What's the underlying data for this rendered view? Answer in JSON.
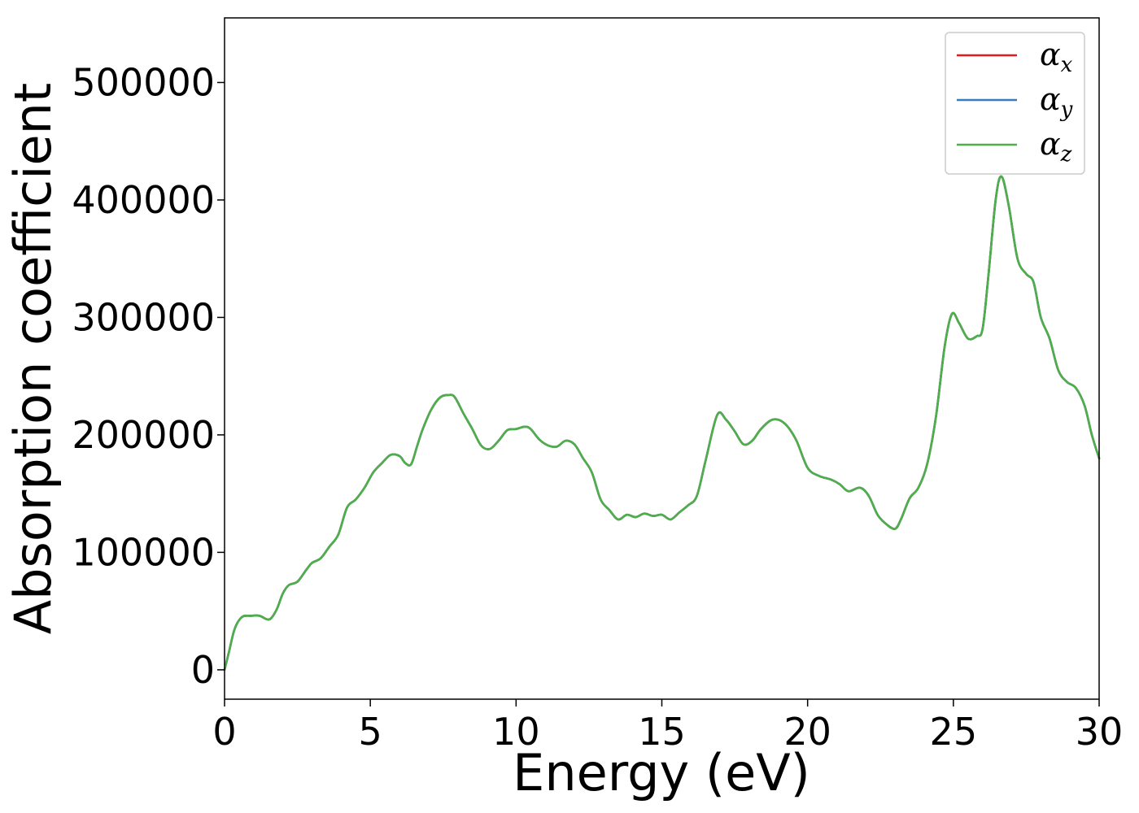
{
  "chart_data": {
    "type": "line",
    "title": "",
    "xlabel": "Energy (eV)",
    "ylabel": "Absorption coefficient",
    "xlim": [
      0,
      30
    ],
    "ylim": [
      -25000,
      555000
    ],
    "xticks": [
      0,
      5,
      10,
      15,
      20,
      25,
      30
    ],
    "yticks": [
      0,
      100000,
      200000,
      300000,
      400000,
      500000
    ],
    "grid": false,
    "legend_position": "top-right",
    "series": [
      {
        "name": "αx",
        "symbol": "α",
        "subscript": "x",
        "color": "#e41a1c",
        "x": [
          0,
          0.15,
          0.35,
          0.6,
          0.9,
          1.2,
          1.45,
          1.6,
          1.8,
          2.0,
          2.2,
          2.5,
          2.8,
          3.0,
          3.3,
          3.6,
          3.9,
          4.2,
          4.5,
          4.8,
          5.1,
          5.4,
          5.7,
          6.0,
          6.2,
          6.4,
          6.6,
          6.8,
          7.1,
          7.4,
          7.7,
          7.9,
          8.2,
          8.5,
          8.8,
          9.1,
          9.4,
          9.7,
          10.0,
          10.3,
          10.5,
          10.8,
          11.1,
          11.4,
          11.7,
          12.0,
          12.3,
          12.6,
          12.9,
          13.2,
          13.5,
          13.8,
          14.1,
          14.4,
          14.7,
          15.0,
          15.3,
          15.6,
          15.9,
          16.2,
          16.5,
          16.9,
          17.2,
          17.5,
          17.8,
          18.1,
          18.4,
          18.8,
          19.2,
          19.6,
          20.0,
          20.4,
          20.8,
          21.1,
          21.4,
          21.8,
          22.1,
          22.4,
          22.7,
          23.0,
          23.2,
          23.5,
          23.8,
          24.1,
          24.4,
          24.7,
          24.95,
          25.2,
          25.5,
          25.8,
          26.0,
          26.2,
          26.45,
          26.65,
          26.9,
          27.2,
          27.5,
          27.75,
          28.0,
          28.3,
          28.6,
          28.9,
          29.2,
          29.5,
          29.75,
          30.0
        ],
        "y": [
          0,
          15000,
          35000,
          45000,
          46000,
          46000,
          43000,
          44000,
          52000,
          65000,
          72000,
          75000,
          85000,
          91000,
          95000,
          105000,
          115000,
          138000,
          145000,
          155000,
          168000,
          176000,
          183000,
          182000,
          176000,
          175000,
          190000,
          205000,
          222000,
          232000,
          234000,
          232000,
          218000,
          205000,
          191000,
          188000,
          195000,
          204000,
          205000,
          207000,
          205000,
          196000,
          191000,
          190000,
          195000,
          192000,
          180000,
          168000,
          145000,
          136000,
          128000,
          132000,
          130000,
          133000,
          131000,
          132000,
          128000,
          134000,
          140000,
          148000,
          178000,
          217000,
          213000,
          203000,
          192000,
          195000,
          205000,
          213000,
          210000,
          196000,
          172000,
          165000,
          162000,
          158000,
          152000,
          155000,
          148000,
          132000,
          124000,
          120000,
          128000,
          146000,
          155000,
          175000,
          215000,
          275000,
          303000,
          295000,
          282000,
          284000,
          290000,
          335000,
          400000,
          420000,
          395000,
          350000,
          337000,
          330000,
          300000,
          282000,
          255000,
          245000,
          240000,
          225000,
          200000,
          180000
        ]
      },
      {
        "name": "αy",
        "symbol": "α",
        "subscript": "y",
        "color": "#377eb8",
        "x": [
          0,
          0.15,
          0.35,
          0.6,
          0.9,
          1.2,
          1.45,
          1.6,
          1.8,
          2.0,
          2.2,
          2.5,
          2.8,
          3.0,
          3.3,
          3.6,
          3.9,
          4.2,
          4.5,
          4.8,
          5.1,
          5.4,
          5.7,
          6.0,
          6.2,
          6.4,
          6.6,
          6.8,
          7.1,
          7.4,
          7.7,
          7.9,
          8.2,
          8.5,
          8.8,
          9.1,
          9.4,
          9.7,
          10.0,
          10.3,
          10.5,
          10.8,
          11.1,
          11.4,
          11.7,
          12.0,
          12.3,
          12.6,
          12.9,
          13.2,
          13.5,
          13.8,
          14.1,
          14.4,
          14.7,
          15.0,
          15.3,
          15.6,
          15.9,
          16.2,
          16.5,
          16.9,
          17.2,
          17.5,
          17.8,
          18.1,
          18.4,
          18.8,
          19.2,
          19.6,
          20.0,
          20.4,
          20.8,
          21.1,
          21.4,
          21.8,
          22.1,
          22.4,
          22.7,
          23.0,
          23.2,
          23.5,
          23.8,
          24.1,
          24.4,
          24.7,
          24.95,
          25.2,
          25.5,
          25.8,
          26.0,
          26.2,
          26.45,
          26.65,
          26.9,
          27.2,
          27.5,
          27.75,
          28.0,
          28.3,
          28.6,
          28.9,
          29.2,
          29.5,
          29.75,
          30.0
        ],
        "y": [
          0,
          15000,
          35000,
          45000,
          46000,
          46000,
          43000,
          44000,
          52000,
          65000,
          72000,
          75000,
          85000,
          91000,
          95000,
          105000,
          115000,
          138000,
          145000,
          155000,
          168000,
          176000,
          183000,
          182000,
          176000,
          175000,
          190000,
          205000,
          222000,
          232000,
          234000,
          232000,
          218000,
          205000,
          191000,
          188000,
          195000,
          204000,
          205000,
          207000,
          205000,
          196000,
          191000,
          190000,
          195000,
          192000,
          180000,
          168000,
          145000,
          136000,
          128000,
          132000,
          130000,
          133000,
          131000,
          132000,
          128000,
          134000,
          140000,
          148000,
          178000,
          217000,
          213000,
          203000,
          192000,
          195000,
          205000,
          213000,
          210000,
          196000,
          172000,
          165000,
          162000,
          158000,
          152000,
          155000,
          148000,
          132000,
          124000,
          120000,
          128000,
          146000,
          155000,
          175000,
          215000,
          275000,
          303000,
          295000,
          282000,
          284000,
          290000,
          335000,
          400000,
          420000,
          395000,
          350000,
          337000,
          330000,
          300000,
          282000,
          255000,
          245000,
          240000,
          225000,
          200000,
          180000
        ]
      },
      {
        "name": "αz",
        "symbol": "α",
        "subscript": "z",
        "color": "#4daf4a",
        "x": [
          0,
          0.15,
          0.35,
          0.6,
          0.9,
          1.2,
          1.45,
          1.6,
          1.8,
          2.0,
          2.2,
          2.5,
          2.8,
          3.0,
          3.3,
          3.6,
          3.9,
          4.2,
          4.5,
          4.8,
          5.1,
          5.4,
          5.7,
          6.0,
          6.2,
          6.4,
          6.6,
          6.8,
          7.1,
          7.4,
          7.7,
          7.9,
          8.2,
          8.5,
          8.8,
          9.1,
          9.4,
          9.7,
          10.0,
          10.3,
          10.5,
          10.8,
          11.1,
          11.4,
          11.7,
          12.0,
          12.3,
          12.6,
          12.9,
          13.2,
          13.5,
          13.8,
          14.1,
          14.4,
          14.7,
          15.0,
          15.3,
          15.6,
          15.9,
          16.2,
          16.5,
          16.9,
          17.2,
          17.5,
          17.8,
          18.1,
          18.4,
          18.8,
          19.2,
          19.6,
          20.0,
          20.4,
          20.8,
          21.1,
          21.4,
          21.8,
          22.1,
          22.4,
          22.7,
          23.0,
          23.2,
          23.5,
          23.8,
          24.1,
          24.4,
          24.7,
          24.95,
          25.2,
          25.5,
          25.8,
          26.0,
          26.2,
          26.45,
          26.65,
          26.9,
          27.2,
          27.5,
          27.75,
          28.0,
          28.3,
          28.6,
          28.9,
          29.2,
          29.5,
          29.75,
          30.0
        ],
        "y": [
          0,
          15000,
          35000,
          45000,
          46000,
          46000,
          43000,
          44000,
          52000,
          65000,
          72000,
          75000,
          85000,
          91000,
          95000,
          105000,
          115000,
          138000,
          145000,
          155000,
          168000,
          176000,
          183000,
          182000,
          176000,
          175000,
          190000,
          205000,
          222000,
          232000,
          234000,
          232000,
          218000,
          205000,
          191000,
          188000,
          195000,
          204000,
          205000,
          207000,
          205000,
          196000,
          191000,
          190000,
          195000,
          192000,
          180000,
          168000,
          145000,
          136000,
          128000,
          132000,
          130000,
          133000,
          131000,
          132000,
          128000,
          134000,
          140000,
          148000,
          178000,
          217000,
          213000,
          203000,
          192000,
          195000,
          205000,
          213000,
          210000,
          196000,
          172000,
          165000,
          162000,
          158000,
          152000,
          155000,
          148000,
          132000,
          124000,
          120000,
          128000,
          146000,
          155000,
          175000,
          215000,
          275000,
          303000,
          295000,
          282000,
          284000,
          290000,
          335000,
          400000,
          420000,
          395000,
          350000,
          337000,
          330000,
          300000,
          282000,
          255000,
          245000,
          240000,
          225000,
          200000,
          180000
        ]
      }
    ]
  }
}
